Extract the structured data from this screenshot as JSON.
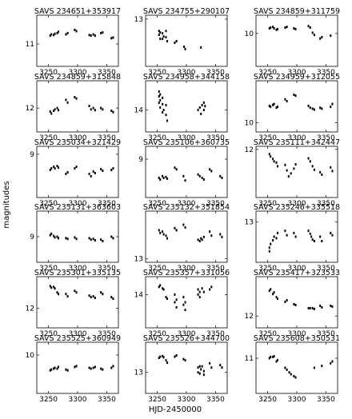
{
  "figure": {
    "xlabel": "HJD-2450000",
    "ylabel": "magnitudes"
  },
  "chart_data": [
    {
      "type": "scatter",
      "title": "SAVS 234651+353917",
      "xlim": [
        3230,
        3370
      ],
      "ylim": [
        11.35,
        10.55
      ],
      "yticks": [
        11
      ],
      "xticks": [
        3250,
        3300,
        3350
      ],
      "x": [
        3253,
        3255,
        3259,
        3261,
        3265,
        3267,
        3280,
        3283,
        3295,
        3298,
        3320,
        3323,
        3327,
        3330,
        3340,
        3343,
        3358,
        3361
      ],
      "y": [
        10.87,
        10.85,
        10.86,
        10.84,
        10.83,
        10.81,
        10.85,
        10.83,
        10.78,
        10.8,
        10.86,
        10.87,
        10.85,
        10.87,
        10.83,
        10.82,
        10.91,
        10.9
      ]
    },
    {
      "type": "scatter",
      "title": "SAVS 234755+290107",
      "xlim": [
        3230,
        3370
      ],
      "ylim": [
        13.6,
        12.95
      ],
      "yticks": [
        13
      ],
      "xticks": [
        3250,
        3300,
        3350
      ],
      "x": [
        3253,
        3253,
        3255,
        3255,
        3259,
        3259,
        3261,
        3265,
        3265,
        3267,
        3280,
        3283,
        3296,
        3298,
        3325
      ],
      "y": [
        13.15,
        13.2,
        13.17,
        13.25,
        13.18,
        13.25,
        13.22,
        13.15,
        13.23,
        13.28,
        13.3,
        13.28,
        13.35,
        13.38,
        13.36
      ]
    },
    {
      "type": "scatter",
      "title": "SAVS 234859+311759",
      "xlim": [
        3230,
        3370
      ],
      "ylim": [
        10.45,
        9.75
      ],
      "yticks": [
        10
      ],
      "xticks": [
        3250,
        3300,
        3350
      ],
      "x": [
        3253,
        3255,
        3259,
        3261,
        3265,
        3267,
        3280,
        3283,
        3295,
        3298,
        3320,
        3323,
        3327,
        3330,
        3340,
        3343,
        3358
      ],
      "y": [
        9.93,
        9.92,
        9.91,
        9.93,
        9.95,
        9.94,
        9.92,
        9.91,
        9.93,
        9.94,
        9.9,
        9.92,
        9.99,
        10.02,
        10.07,
        10.05,
        10.03
      ]
    },
    {
      "type": "scatter",
      "title": "SAVS 234859+315848",
      "xlim": [
        3230,
        3370
      ],
      "ylim": [
        12.35,
        11.6
      ],
      "yticks": [
        12
      ],
      "xticks": [
        3250,
        3300,
        3350
      ],
      "x": [
        3253,
        3255,
        3259,
        3261,
        3265,
        3267,
        3280,
        3283,
        3295,
        3298,
        3320,
        3323,
        3327,
        3330,
        3340,
        3343,
        3358,
        3361
      ],
      "y": [
        12.05,
        12.08,
        12.04,
        12.02,
        12.0,
        12.03,
        11.88,
        11.92,
        11.84,
        11.86,
        11.97,
        12.02,
        12.0,
        12.03,
        12.0,
        12.02,
        12.04,
        12.06
      ]
    },
    {
      "type": "scatter",
      "title": "SAVS 234958+344158",
      "xlim": [
        3230,
        3370
      ],
      "ylim": [
        14.45,
        13.4
      ],
      "yticks": [
        14
      ],
      "xticks": [
        3250,
        3300,
        3350
      ],
      "x": [
        3253,
        3253,
        3253,
        3255,
        3255,
        3255,
        3259,
        3259,
        3259,
        3261,
        3265,
        3265,
        3267,
        3320,
        3323,
        3325,
        3327,
        3330,
        3330,
        3332
      ],
      "y": [
        13.62,
        13.72,
        13.85,
        13.68,
        13.8,
        13.95,
        13.75,
        13.88,
        14.05,
        14.0,
        13.9,
        14.1,
        14.22,
        14.0,
        13.95,
        14.08,
        13.9,
        13.85,
        14.0,
        13.92
      ]
    },
    {
      "type": "scatter",
      "title": "SAVS 234959+312055",
      "xlim": [
        3230,
        3370
      ],
      "ylim": [
        10.1,
        9.55
      ],
      "yticks": [
        10
      ],
      "xticks": [
        3250,
        3300,
        3350
      ],
      "x": [
        3253,
        3255,
        3259,
        3261,
        3265,
        3267,
        3280,
        3283,
        3295,
        3298,
        3320,
        3323,
        3327,
        3330,
        3340,
        3343,
        3358,
        3361
      ],
      "y": [
        9.82,
        9.83,
        9.81,
        9.8,
        9.84,
        9.83,
        9.75,
        9.77,
        9.7,
        9.71,
        9.82,
        9.84,
        9.85,
        9.86,
        9.84,
        9.85,
        9.83,
        9.8
      ]
    },
    {
      "type": "scatter",
      "title": "SAVS 235034+321429",
      "xlim": [
        3230,
        3370
      ],
      "ylim": [
        9.55,
        8.9
      ],
      "yticks": [
        9
      ],
      "xticks": [
        3250,
        3300,
        3350
      ],
      "x": [
        3253,
        3255,
        3259,
        3261,
        3265,
        3267,
        3280,
        3283,
        3295,
        3298,
        3320,
        3323,
        3327,
        3330,
        3340,
        3343,
        3358,
        3361
      ],
      "y": [
        9.2,
        9.18,
        9.16,
        9.18,
        9.15,
        9.17,
        9.25,
        9.23,
        9.18,
        9.16,
        9.25,
        9.28,
        9.22,
        9.24,
        9.19,
        9.21,
        9.2,
        9.18
      ]
    },
    {
      "type": "scatter",
      "title": "SAVS 235106+360735",
      "xlim": [
        3230,
        3370
      ],
      "ylim": [
        9.45,
        8.85
      ],
      "yticks": [
        9
      ],
      "xticks": [
        3250,
        3300,
        3350
      ],
      "x": [
        3253,
        3255,
        3259,
        3261,
        3265,
        3267,
        3280,
        3283,
        3295,
        3298,
        3320,
        3323,
        3327,
        3330,
        3340,
        3343,
        3358,
        3361
      ],
      "y": [
        9.22,
        9.24,
        9.2,
        9.22,
        9.21,
        9.23,
        9.1,
        9.12,
        9.2,
        9.25,
        9.18,
        9.2,
        9.22,
        9.24,
        9.12,
        9.14,
        9.2,
        9.22
      ]
    },
    {
      "type": "scatter",
      "title": "SAVS 235111+342447",
      "xlim": [
        3230,
        3370
      ],
      "ylim": [
        12.8,
        11.95
      ],
      "yticks": [
        12
      ],
      "xticks": [
        3250,
        3300,
        3350
      ],
      "x": [
        3253,
        3255,
        3259,
        3261,
        3265,
        3267,
        3280,
        3283,
        3286,
        3290,
        3295,
        3298,
        3320,
        3323,
        3327,
        3330,
        3340,
        3343,
        3358,
        3361
      ],
      "y": [
        12.08,
        12.12,
        12.16,
        12.2,
        12.22,
        12.28,
        12.26,
        12.35,
        12.45,
        12.4,
        12.32,
        12.25,
        12.15,
        12.2,
        12.28,
        12.34,
        12.38,
        12.42,
        12.3,
        12.36
      ]
    },
    {
      "type": "scatter",
      "title": "SAVS 235131+363603",
      "xlim": [
        3230,
        3370
      ],
      "ylim": [
        9.35,
        8.65
      ],
      "yticks": [
        9
      ],
      "xticks": [
        3250,
        3300,
        3350
      ],
      "x": [
        3253,
        3255,
        3259,
        3261,
        3265,
        3267,
        3280,
        3283,
        3295,
        3298,
        3320,
        3323,
        3327,
        3330,
        3340,
        3343,
        3358,
        3361
      ],
      "y": [
        8.98,
        8.96,
        8.99,
        9.01,
        9.0,
        9.02,
        9.02,
        9.03,
        9.01,
        9.03,
        9.02,
        9.04,
        9.03,
        9.05,
        9.04,
        9.06,
        9.0,
        9.02
      ]
    },
    {
      "type": "scatter",
      "title": "SAVS 235132+351854",
      "xlim": [
        3230,
        3370
      ],
      "ylim": [
        13.05,
        12.3
      ],
      "yticks": [
        13
      ],
      "xticks": [
        3250,
        3300,
        3350
      ],
      "x": [
        3253,
        3255,
        3259,
        3261,
        3265,
        3267,
        3280,
        3283,
        3295,
        3298,
        3320,
        3323,
        3325,
        3327,
        3330,
        3340,
        3343,
        3358,
        3361
      ],
      "y": [
        12.58,
        12.62,
        12.6,
        12.64,
        12.66,
        12.7,
        12.55,
        12.58,
        12.5,
        12.54,
        12.72,
        12.74,
        12.7,
        12.72,
        12.68,
        12.6,
        12.66,
        12.64,
        12.68
      ]
    },
    {
      "type": "scatter",
      "title": "SAVS 235246+335518",
      "xlim": [
        3230,
        3370
      ],
      "ylim": [
        13.55,
        12.85
      ],
      "yticks": [
        13
      ],
      "xticks": [
        3250,
        3300,
        3350
      ],
      "x": [
        3253,
        3253,
        3255,
        3259,
        3261,
        3265,
        3267,
        3280,
        3283,
        3295,
        3298,
        3320,
        3323,
        3325,
        3327,
        3330,
        3340,
        3343,
        3358,
        3361
      ],
      "y": [
        13.4,
        13.35,
        13.3,
        13.25,
        13.2,
        13.22,
        13.15,
        13.12,
        13.18,
        13.15,
        13.2,
        13.12,
        13.16,
        13.2,
        13.24,
        13.26,
        13.2,
        13.26,
        13.15,
        13.18
      ]
    },
    {
      "type": "scatter",
      "title": "SAVS 235301+335135",
      "xlim": [
        3230,
        3370
      ],
      "ylim": [
        12.25,
        11.6
      ],
      "yticks": [
        12
      ],
      "xticks": [
        3250,
        3300,
        3350
      ],
      "x": [
        3253,
        3255,
        3259,
        3261,
        3265,
        3267,
        3280,
        3283,
        3295,
        3298,
        3320,
        3323,
        3327,
        3330,
        3340,
        3343,
        3358,
        3361
      ],
      "y": [
        11.72,
        11.74,
        11.73,
        11.75,
        11.8,
        11.82,
        11.82,
        11.85,
        11.78,
        11.8,
        11.84,
        11.86,
        11.85,
        11.87,
        11.8,
        11.82,
        11.86,
        11.88
      ]
    },
    {
      "type": "scatter",
      "title": "SAVS 235357+331056",
      "xlim": [
        3230,
        3370
      ],
      "ylim": [
        14.65,
        13.65
      ],
      "yticks": [
        14
      ],
      "xticks": [
        3250,
        3300,
        3350
      ],
      "x": [
        3253,
        3255,
        3259,
        3261,
        3265,
        3267,
        3280,
        3280,
        3283,
        3283,
        3295,
        3295,
        3298,
        3298,
        3320,
        3320,
        3323,
        3323,
        3327,
        3330,
        3340,
        3343
      ],
      "y": [
        13.85,
        13.82,
        13.88,
        13.9,
        14.05,
        14.08,
        14.0,
        14.15,
        14.1,
        14.25,
        14.05,
        14.2,
        14.15,
        14.3,
        13.9,
        14.0,
        13.95,
        14.05,
        13.88,
        13.95,
        13.9,
        13.85
      ]
    },
    {
      "type": "scatter",
      "title": "SAVS 235417+323533",
      "xlim": [
        3230,
        3370
      ],
      "ylim": [
        12.15,
        11.5
      ],
      "yticks": [
        12
      ],
      "xticks": [
        3250,
        3300,
        3350
      ],
      "x": [
        3253,
        3255,
        3259,
        3261,
        3265,
        3267,
        3280,
        3283,
        3295,
        3298,
        3320,
        3323,
        3327,
        3330,
        3340,
        3343,
        3358,
        3361
      ],
      "y": [
        11.68,
        11.66,
        11.72,
        11.7,
        11.76,
        11.78,
        11.82,
        11.8,
        11.85,
        11.86,
        11.9,
        11.9,
        11.9,
        11.91,
        11.87,
        11.89,
        11.87,
        11.88
      ]
    },
    {
      "type": "scatter",
      "title": "SAVS 235525+360949",
      "xlim": [
        3230,
        3370
      ],
      "ylim": [
        10.45,
        9.85
      ],
      "yticks": [
        10
      ],
      "xticks": [
        3250,
        3300,
        3350
      ],
      "x": [
        3253,
        3255,
        3259,
        3261,
        3265,
        3267,
        3280,
        3283,
        3295,
        3298,
        3320,
        3323,
        3327,
        3330,
        3340,
        3343,
        3358,
        3361
      ],
      "y": [
        10.18,
        10.17,
        10.16,
        10.15,
        10.16,
        10.14,
        10.17,
        10.18,
        10.14,
        10.13,
        10.15,
        10.16,
        10.15,
        10.14,
        10.16,
        10.17,
        10.15,
        10.13
      ]
    },
    {
      "type": "scatter",
      "title": "SAVS 235526+344700",
      "xlim": [
        3230,
        3370
      ],
      "ylim": [
        13.35,
        12.5
      ],
      "yticks": [
        13
      ],
      "xticks": [
        3250,
        3300,
        3350
      ],
      "x": [
        3253,
        3255,
        3259,
        3261,
        3265,
        3267,
        3280,
        3283,
        3295,
        3298,
        3320,
        3320,
        3323,
        3323,
        3325,
        3327,
        3330,
        3330,
        3340,
        3343,
        3358,
        3361
      ],
      "y": [
        12.76,
        12.74,
        12.73,
        12.75,
        12.8,
        12.84,
        12.74,
        12.72,
        12.78,
        12.8,
        12.92,
        13.0,
        12.9,
        13.02,
        12.95,
        12.9,
        12.98,
        13.04,
        12.85,
        12.92,
        12.88,
        12.92
      ]
    },
    {
      "type": "scatter",
      "title": "SAVS 235608+350531",
      "xlim": [
        3230,
        3370
      ],
      "ylim": [
        11.55,
        10.75
      ],
      "yticks": [
        11
      ],
      "xticks": [
        3250,
        3300,
        3350
      ],
      "x": [
        3253,
        3255,
        3259,
        3261,
        3265,
        3267,
        3280,
        3283,
        3287,
        3290,
        3295,
        3298,
        3330,
        3343,
        3358,
        3361
      ],
      "y": [
        11.0,
        10.98,
        10.98,
        10.97,
        11.05,
        11.03,
        11.15,
        11.18,
        11.22,
        11.25,
        11.28,
        11.3,
        11.15,
        11.12,
        11.08,
        11.05
      ]
    }
  ]
}
